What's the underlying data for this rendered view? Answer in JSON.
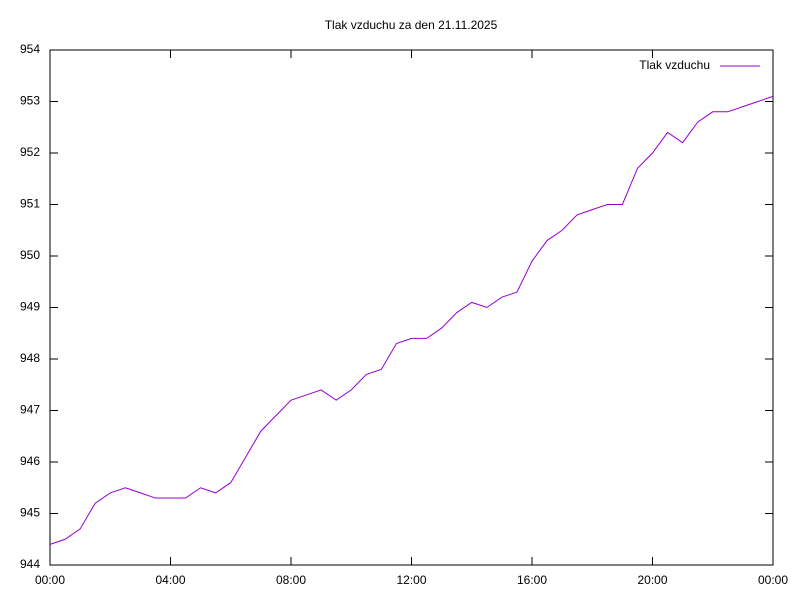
{
  "chart_data": {
    "type": "line",
    "title": "Tlak vzduchu za den 21.11.2025",
    "x": [
      0,
      0.5,
      1,
      1.5,
      2,
      2.5,
      3,
      3.5,
      4,
      4.5,
      5,
      5.5,
      6,
      6.5,
      7,
      7.5,
      8,
      8.5,
      9,
      9.5,
      10,
      10.5,
      11,
      11.5,
      12,
      12.5,
      13,
      13.5,
      14,
      14.5,
      15,
      15.5,
      16,
      16.5,
      17,
      17.5,
      18,
      18.5,
      19,
      19.5,
      20,
      20.5,
      21,
      21.5,
      22,
      22.5,
      23,
      23.5,
      24
    ],
    "series": [
      {
        "name": "Tlak vzduchu",
        "color": "#9400d3",
        "values": [
          944.4,
          944.5,
          944.7,
          945.2,
          945.4,
          945.5,
          945.4,
          945.3,
          945.3,
          945.3,
          945.5,
          945.4,
          945.6,
          946.1,
          946.6,
          946.9,
          947.2,
          947.3,
          947.4,
          947.2,
          947.4,
          947.7,
          947.8,
          948.3,
          948.4,
          948.4,
          948.6,
          948.9,
          949.1,
          949.0,
          949.2,
          949.3,
          949.9,
          950.3,
          950.5,
          950.8,
          950.9,
          951.0,
          951.0,
          951.7,
          952.0,
          952.4,
          952.2,
          952.6,
          952.8,
          952.8,
          952.9,
          953.0,
          953.1
        ]
      }
    ],
    "xlim": [
      0,
      24
    ],
    "xticks": [
      {
        "value": 0,
        "label": "00:00"
      },
      {
        "value": 4,
        "label": "04:00"
      },
      {
        "value": 8,
        "label": "08:00"
      },
      {
        "value": 12,
        "label": "12:00"
      },
      {
        "value": 16,
        "label": "16:00"
      },
      {
        "value": 20,
        "label": "20:00"
      },
      {
        "value": 24,
        "label": "00:00"
      }
    ],
    "ylim": [
      944,
      954
    ],
    "yticks": [
      944,
      945,
      946,
      947,
      948,
      949,
      950,
      951,
      952,
      953,
      954
    ],
    "legend": "top-right",
    "grid": false
  }
}
